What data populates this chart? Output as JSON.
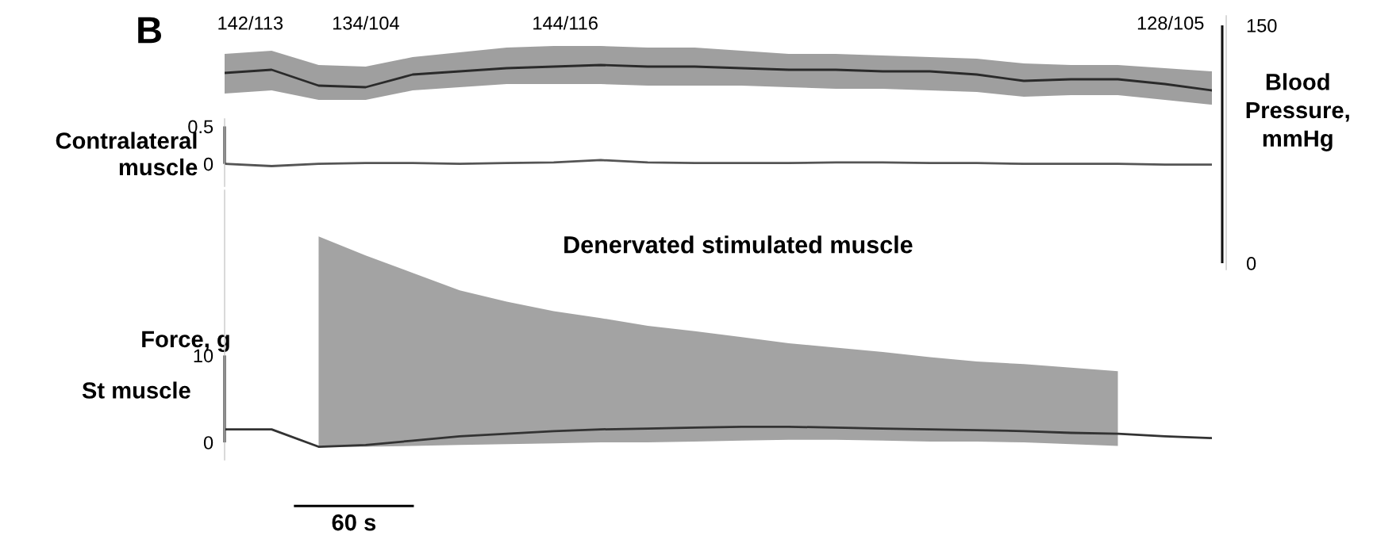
{
  "chart_data": [
    {
      "type": "line",
      "title": "B",
      "ylabel": "Blood Pressure, mmHg",
      "ylim": [
        -4,
        156
      ],
      "yticks": [
        0,
        150
      ],
      "tick_labels": "y",
      "categories": [
        null,
        null,
        null,
        null,
        null,
        null,
        null,
        null,
        null,
        null,
        null,
        null,
        null,
        null,
        null,
        null,
        null,
        null,
        null,
        null,
        null,
        null
      ],
      "series": [
        {
          "color": "#2a2a2a",
          "values": [
            120,
            122,
            112,
            111,
            119,
            121,
            123,
            124,
            125,
            124,
            124,
            123,
            122,
            122,
            121,
            121,
            119,
            115,
            116,
            116,
            113,
            109
          ],
          "upper": [
            132,
            134,
            125,
            124,
            130,
            133,
            136,
            137,
            137,
            136,
            136,
            134,
            132,
            132,
            131,
            130,
            129,
            126,
            125,
            125,
            123,
            121
          ],
          "lower": [
            107,
            109,
            103,
            103,
            109,
            111,
            113,
            113,
            113,
            112,
            112,
            112,
            111,
            110,
            110,
            109,
            108,
            105,
            106,
            106,
            103,
            100
          ]
        }
      ],
      "annotations": [
        "142/113",
        "134/104",
        "144/116",
        "128/105"
      ]
    },
    {
      "type": "line",
      "ylabel": "Contralateral muscle",
      "ylim": [
        -0.3,
        0.6
      ],
      "yticks": [
        0,
        0.5
      ],
      "tick_labels": "y",
      "categories": [
        null,
        null,
        null,
        null,
        null,
        null,
        null,
        null,
        null,
        null,
        null,
        null,
        null,
        null,
        null,
        null,
        null,
        null,
        null,
        null,
        null,
        null
      ],
      "series": [
        {
          "color": "#555555",
          "values": [
            0,
            -0.03,
            0,
            0.01,
            0.01,
            0,
            0.01,
            0.02,
            0.05,
            0.02,
            0.01,
            0.01,
            0.01,
            0.02,
            0.02,
            0.01,
            0.01,
            0,
            0,
            0,
            -0.01,
            -0.01
          ]
        }
      ],
      "annotations": [
        "Force, g"
      ]
    },
    {
      "type": "line",
      "ylabel": "St muscle",
      "xlabel": "60 s",
      "ylim": [
        -2,
        29
      ],
      "yticks": [
        0,
        10
      ],
      "tick_labels": "y",
      "categories": [
        null,
        null,
        null,
        null,
        null,
        null,
        null,
        null,
        null,
        null,
        null,
        null,
        null,
        null,
        null,
        null,
        null,
        null,
        null,
        null,
        null,
        null
      ],
      "series": [
        {
          "color": "#333333",
          "values": [
            1.5,
            1.5,
            -0.5,
            -0.3,
            0.2,
            0.7,
            1.0,
            1.3,
            1.5,
            1.6,
            1.7,
            1.8,
            1.8,
            1.7,
            1.6,
            1.5,
            1.4,
            1.3,
            1.1,
            1.0,
            0.7,
            0.5
          ],
          "upper": [
            null,
            null,
            23.7,
            21.5,
            19.5,
            17.5,
            16.2,
            15.1,
            14.3,
            13.4,
            12.8,
            12.1,
            11.4,
            10.9,
            10.4,
            9.8,
            9.3,
            9.0,
            8.6,
            8.2,
            null,
            null
          ],
          "lower": [
            null,
            null,
            -0.5,
            -0.5,
            -0.4,
            -0.3,
            -0.2,
            -0.1,
            0,
            0,
            0.1,
            0.2,
            0.3,
            0.3,
            0.2,
            0.1,
            0.1,
            0,
            -0.2,
            -0.4,
            null,
            null
          ]
        }
      ],
      "annotations": [
        "Denervated stimulated muscle"
      ]
    }
  ]
}
